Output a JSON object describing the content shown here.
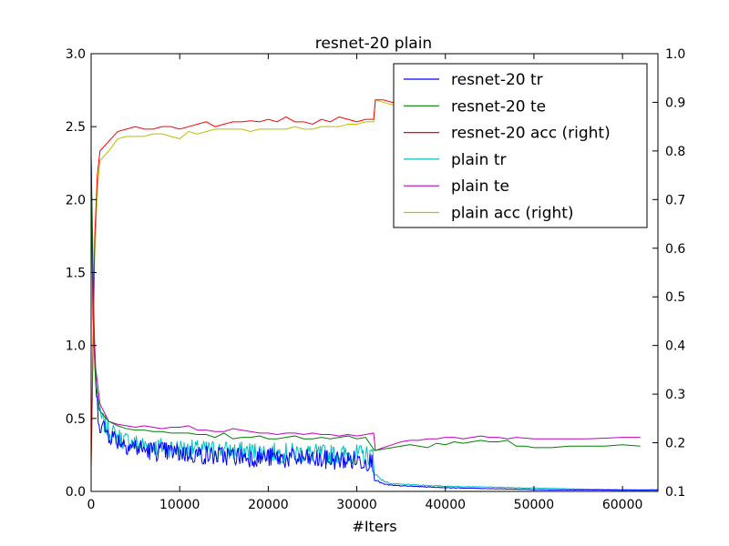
{
  "chart_data": {
    "type": "line",
    "title": "resnet-20 plain",
    "xlabel": "#Iters",
    "ylabel": "",
    "ylabel_right": "",
    "xlim": [
      0,
      64000
    ],
    "ylim": [
      0.0,
      3.0
    ],
    "ylim_right": [
      0.1,
      1.0
    ],
    "x_ticks": [
      0,
      10000,
      20000,
      30000,
      40000,
      50000,
      60000
    ],
    "x_tick_labels": [
      "0",
      "10000",
      "20000",
      "30000",
      "40000",
      "50000",
      "60000"
    ],
    "y_ticks": [
      0.0,
      0.5,
      1.0,
      1.5,
      2.0,
      2.5,
      3.0
    ],
    "y_tick_labels": [
      "0.0",
      "0.5",
      "1.0",
      "1.5",
      "2.0",
      "2.5",
      "3.0"
    ],
    "y2_ticks": [
      0.1,
      0.2,
      0.3,
      0.4,
      0.5,
      0.6,
      0.7,
      0.8,
      0.9,
      1.0
    ],
    "y2_tick_labels": [
      "0.1",
      "0.2",
      "0.3",
      "0.4",
      "0.5",
      "0.6",
      "0.7",
      "0.8",
      "0.9",
      "1.0"
    ],
    "grid": false,
    "legend_position": "top-right",
    "series": [
      {
        "name": "resnet-20 tr",
        "axis": "left",
        "color": "#0000ff",
        "x": [
          0,
          200,
          400,
          600,
          800,
          1000,
          1500,
          2000,
          3000,
          4000,
          6000,
          8000,
          10000,
          12000,
          14000,
          16000,
          18000,
          20000,
          22000,
          24000,
          26000,
          28000,
          30000,
          31800,
          32000,
          33000,
          34000,
          36000,
          38000,
          40000,
          44000,
          48000,
          52000,
          56000,
          60000,
          62000,
          64000
        ],
        "y": [
          2.3,
          1.5,
          0.9,
          0.65,
          0.52,
          0.45,
          0.42,
          0.38,
          0.34,
          0.31,
          0.27,
          0.26,
          0.25,
          0.24,
          0.23,
          0.23,
          0.22,
          0.22,
          0.21,
          0.21,
          0.2,
          0.2,
          0.2,
          0.19,
          0.08,
          0.05,
          0.04,
          0.035,
          0.03,
          0.025,
          0.02,
          0.015,
          0.01,
          0.01,
          0.008,
          0.008,
          0.008
        ],
        "noise": 0.07
      },
      {
        "name": "resnet-20 te",
        "axis": "left",
        "color": "#008000",
        "x": [
          0,
          200,
          500,
          1000,
          2000,
          3000,
          4000,
          5000,
          6000,
          7000,
          8000,
          9000,
          10000,
          11000,
          12000,
          13000,
          14000,
          15000,
          16000,
          17000,
          18000,
          19000,
          20000,
          21000,
          22000,
          23000,
          24000,
          25000,
          26000,
          27000,
          28000,
          29000,
          30000,
          31000,
          32000,
          33000,
          34000,
          35000,
          36000,
          37000,
          38000,
          39000,
          40000,
          41000,
          42000,
          43000,
          44000,
          45000,
          46000,
          47000,
          48000,
          49000,
          50000,
          52000,
          54000,
          56000,
          58000,
          60000,
          62000
        ],
        "y": [
          2.2,
          1.2,
          0.75,
          0.55,
          0.48,
          0.45,
          0.43,
          0.42,
          0.42,
          0.41,
          0.41,
          0.4,
          0.4,
          0.4,
          0.39,
          0.39,
          0.37,
          0.4,
          0.36,
          0.37,
          0.37,
          0.38,
          0.36,
          0.36,
          0.37,
          0.38,
          0.36,
          0.36,
          0.37,
          0.36,
          0.37,
          0.38,
          0.36,
          0.37,
          0.28,
          0.29,
          0.3,
          0.31,
          0.32,
          0.31,
          0.3,
          0.33,
          0.32,
          0.34,
          0.33,
          0.34,
          0.35,
          0.34,
          0.34,
          0.35,
          0.31,
          0.31,
          0.3,
          0.3,
          0.31,
          0.31,
          0.31,
          0.32,
          0.31
        ]
      },
      {
        "name": "resnet-20 acc (right)",
        "axis": "right",
        "color": "#ff0000",
        "x": [
          0,
          400,
          700,
          1000,
          2000,
          3000,
          4000,
          5000,
          6000,
          7000,
          8000,
          9000,
          10000,
          11000,
          12000,
          13000,
          14000,
          15000,
          16000,
          17000,
          18000,
          19000,
          20000,
          21000,
          22000,
          23000,
          24000,
          25000,
          26000,
          27000,
          28000,
          29000,
          30000,
          31000,
          31900,
          32100,
          33000,
          34000,
          36000,
          38000,
          40000,
          42000,
          44000,
          46000,
          48000,
          50000,
          52000,
          54000,
          56000,
          58000,
          60000,
          62000
        ],
        "y": [
          0.15,
          0.62,
          0.75,
          0.8,
          0.82,
          0.84,
          0.845,
          0.85,
          0.845,
          0.845,
          0.85,
          0.85,
          0.845,
          0.85,
          0.855,
          0.86,
          0.85,
          0.855,
          0.86,
          0.86,
          0.862,
          0.86,
          0.865,
          0.86,
          0.87,
          0.86,
          0.86,
          0.855,
          0.865,
          0.86,
          0.87,
          0.865,
          0.86,
          0.865,
          0.865,
          0.905,
          0.905,
          0.9,
          0.903,
          0.9,
          0.905,
          0.9,
          0.902,
          0.903,
          0.898,
          0.905,
          0.905,
          0.907,
          0.905,
          0.906,
          0.908,
          0.907
        ]
      },
      {
        "name": "plain tr",
        "axis": "left",
        "color": "#00bfbf",
        "x": [
          0,
          200,
          400,
          600,
          800,
          1000,
          1500,
          2000,
          3000,
          4000,
          6000,
          8000,
          10000,
          12000,
          14000,
          16000,
          18000,
          20000,
          22000,
          24000,
          26000,
          28000,
          30000,
          31800,
          32000,
          33000,
          34000,
          36000,
          38000,
          40000,
          44000,
          48000,
          52000,
          56000,
          60000,
          62000,
          64000
        ],
        "y": [
          2.3,
          1.6,
          1.0,
          0.72,
          0.58,
          0.5,
          0.45,
          0.4,
          0.36,
          0.33,
          0.3,
          0.29,
          0.28,
          0.27,
          0.27,
          0.26,
          0.26,
          0.25,
          0.25,
          0.25,
          0.24,
          0.24,
          0.24,
          0.23,
          0.12,
          0.07,
          0.05,
          0.045,
          0.04,
          0.035,
          0.03,
          0.025,
          0.02,
          0.015,
          0.012,
          0.012,
          0.012
        ],
        "noise": 0.07
      },
      {
        "name": "plain te",
        "axis": "left",
        "color": "#bf00bf",
        "x": [
          0,
          200,
          500,
          1000,
          2000,
          3000,
          4000,
          5000,
          6000,
          7000,
          8000,
          9000,
          10000,
          11000,
          12000,
          13000,
          14000,
          15000,
          16000,
          17000,
          18000,
          19000,
          20000,
          21000,
          22000,
          23000,
          24000,
          25000,
          26000,
          27000,
          28000,
          29000,
          30000,
          31000,
          31900,
          32100,
          33000,
          34000,
          35000,
          36000,
          37000,
          38000,
          39000,
          40000,
          41000,
          42000,
          43000,
          44000,
          45000,
          46000,
          47000,
          48000,
          50000,
          52000,
          54000,
          56000,
          58000,
          60000,
          62000
        ],
        "y": [
          2.2,
          1.3,
          0.85,
          0.6,
          0.48,
          0.46,
          0.45,
          0.44,
          0.45,
          0.44,
          0.43,
          0.44,
          0.44,
          0.45,
          0.42,
          0.42,
          0.41,
          0.41,
          0.43,
          0.42,
          0.41,
          0.4,
          0.4,
          0.39,
          0.4,
          0.4,
          0.39,
          0.4,
          0.39,
          0.39,
          0.38,
          0.39,
          0.38,
          0.39,
          0.4,
          0.28,
          0.3,
          0.32,
          0.34,
          0.35,
          0.35,
          0.36,
          0.36,
          0.37,
          0.37,
          0.36,
          0.37,
          0.38,
          0.37,
          0.37,
          0.36,
          0.37,
          0.36,
          0.36,
          0.36,
          0.36,
          0.365,
          0.37,
          0.37
        ]
      },
      {
        "name": "plain acc (right)",
        "axis": "right",
        "color": "#bfbf00",
        "x": [
          0,
          400,
          700,
          1000,
          2000,
          3000,
          4000,
          5000,
          6000,
          7000,
          8000,
          9000,
          10000,
          11000,
          12000,
          13000,
          14000,
          15000,
          16000,
          17000,
          18000,
          19000,
          20000,
          21000,
          22000,
          23000,
          24000,
          25000,
          26000,
          27000,
          28000,
          29000,
          30000,
          31000,
          31900,
          32100,
          33000,
          34000,
          36000,
          38000,
          40000,
          42000,
          44000,
          46000,
          48000,
          50000,
          52000,
          54000,
          56000,
          58000,
          60000,
          62000
        ],
        "y": [
          0.15,
          0.58,
          0.72,
          0.78,
          0.8,
          0.825,
          0.83,
          0.83,
          0.83,
          0.835,
          0.835,
          0.83,
          0.825,
          0.84,
          0.835,
          0.84,
          0.845,
          0.845,
          0.845,
          0.845,
          0.84,
          0.845,
          0.845,
          0.845,
          0.845,
          0.85,
          0.845,
          0.845,
          0.85,
          0.85,
          0.85,
          0.855,
          0.855,
          0.86,
          0.86,
          0.905,
          0.9,
          0.895,
          0.893,
          0.895,
          0.898,
          0.895,
          0.897,
          0.9,
          0.898,
          0.9,
          0.902,
          0.901,
          0.9,
          0.902,
          0.903,
          0.9
        ]
      }
    ]
  }
}
